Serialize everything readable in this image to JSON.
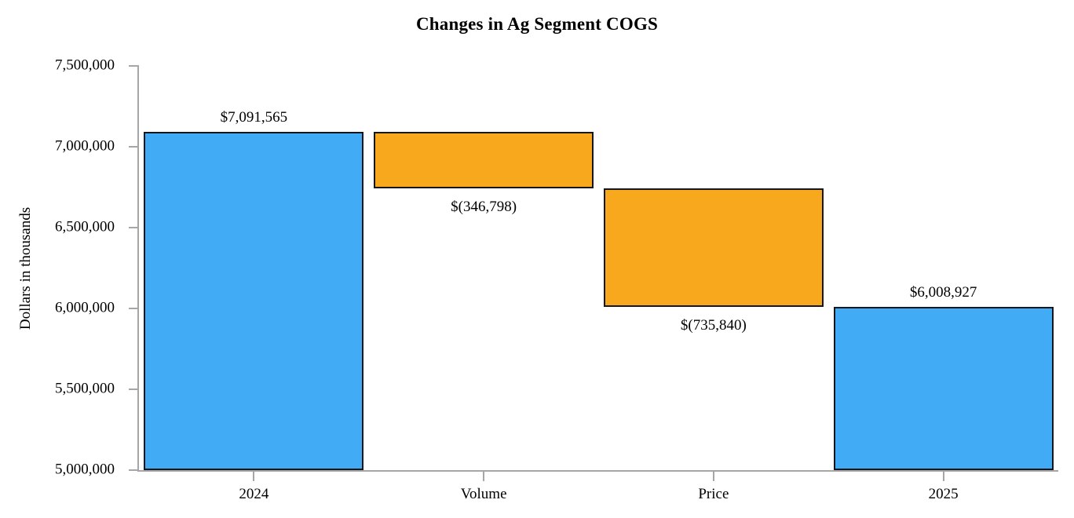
{
  "chart_data": {
    "type": "waterfall",
    "title": "Changes in Ag Segment COGS",
    "ylabel": "Dollars in thousands",
    "xlabel": "",
    "ylim": [
      5000000,
      7500000
    ],
    "y_ticks": [
      5000000,
      5500000,
      6000000,
      6500000,
      7000000,
      7500000
    ],
    "y_tick_labels": [
      "5,000,000",
      "5,500,000",
      "6,000,000",
      "6,500,000",
      "7,000,000",
      "7,500,000"
    ],
    "categories": [
      "2024",
      "Volume",
      "Price",
      "2025"
    ],
    "grid": false,
    "legend": false,
    "colors": {
      "total_bar": "#41abf5",
      "delta_bar": "#f8a81d",
      "bar_border": "#16161d",
      "axis": "#a6a6a6",
      "text": "#000000",
      "background": "#ffffff"
    },
    "bars": [
      {
        "category": "2024",
        "kind": "total",
        "start": 5000000,
        "end": 7091565,
        "value": 7091565,
        "label": "$7,091,565",
        "label_position": "above"
      },
      {
        "category": "Volume",
        "kind": "decrease",
        "start": 7091565,
        "end": 6744767,
        "value": -346798,
        "label": "$(346,798)",
        "label_position": "below"
      },
      {
        "category": "Price",
        "kind": "decrease",
        "start": 6744767,
        "end": 6008927,
        "value": -735840,
        "label": "$(735,840)",
        "label_position": "below"
      },
      {
        "category": "2025",
        "kind": "total",
        "start": 5000000,
        "end": 6008927,
        "value": 6008927,
        "label": "$6,008,927",
        "label_position": "above"
      }
    ]
  }
}
